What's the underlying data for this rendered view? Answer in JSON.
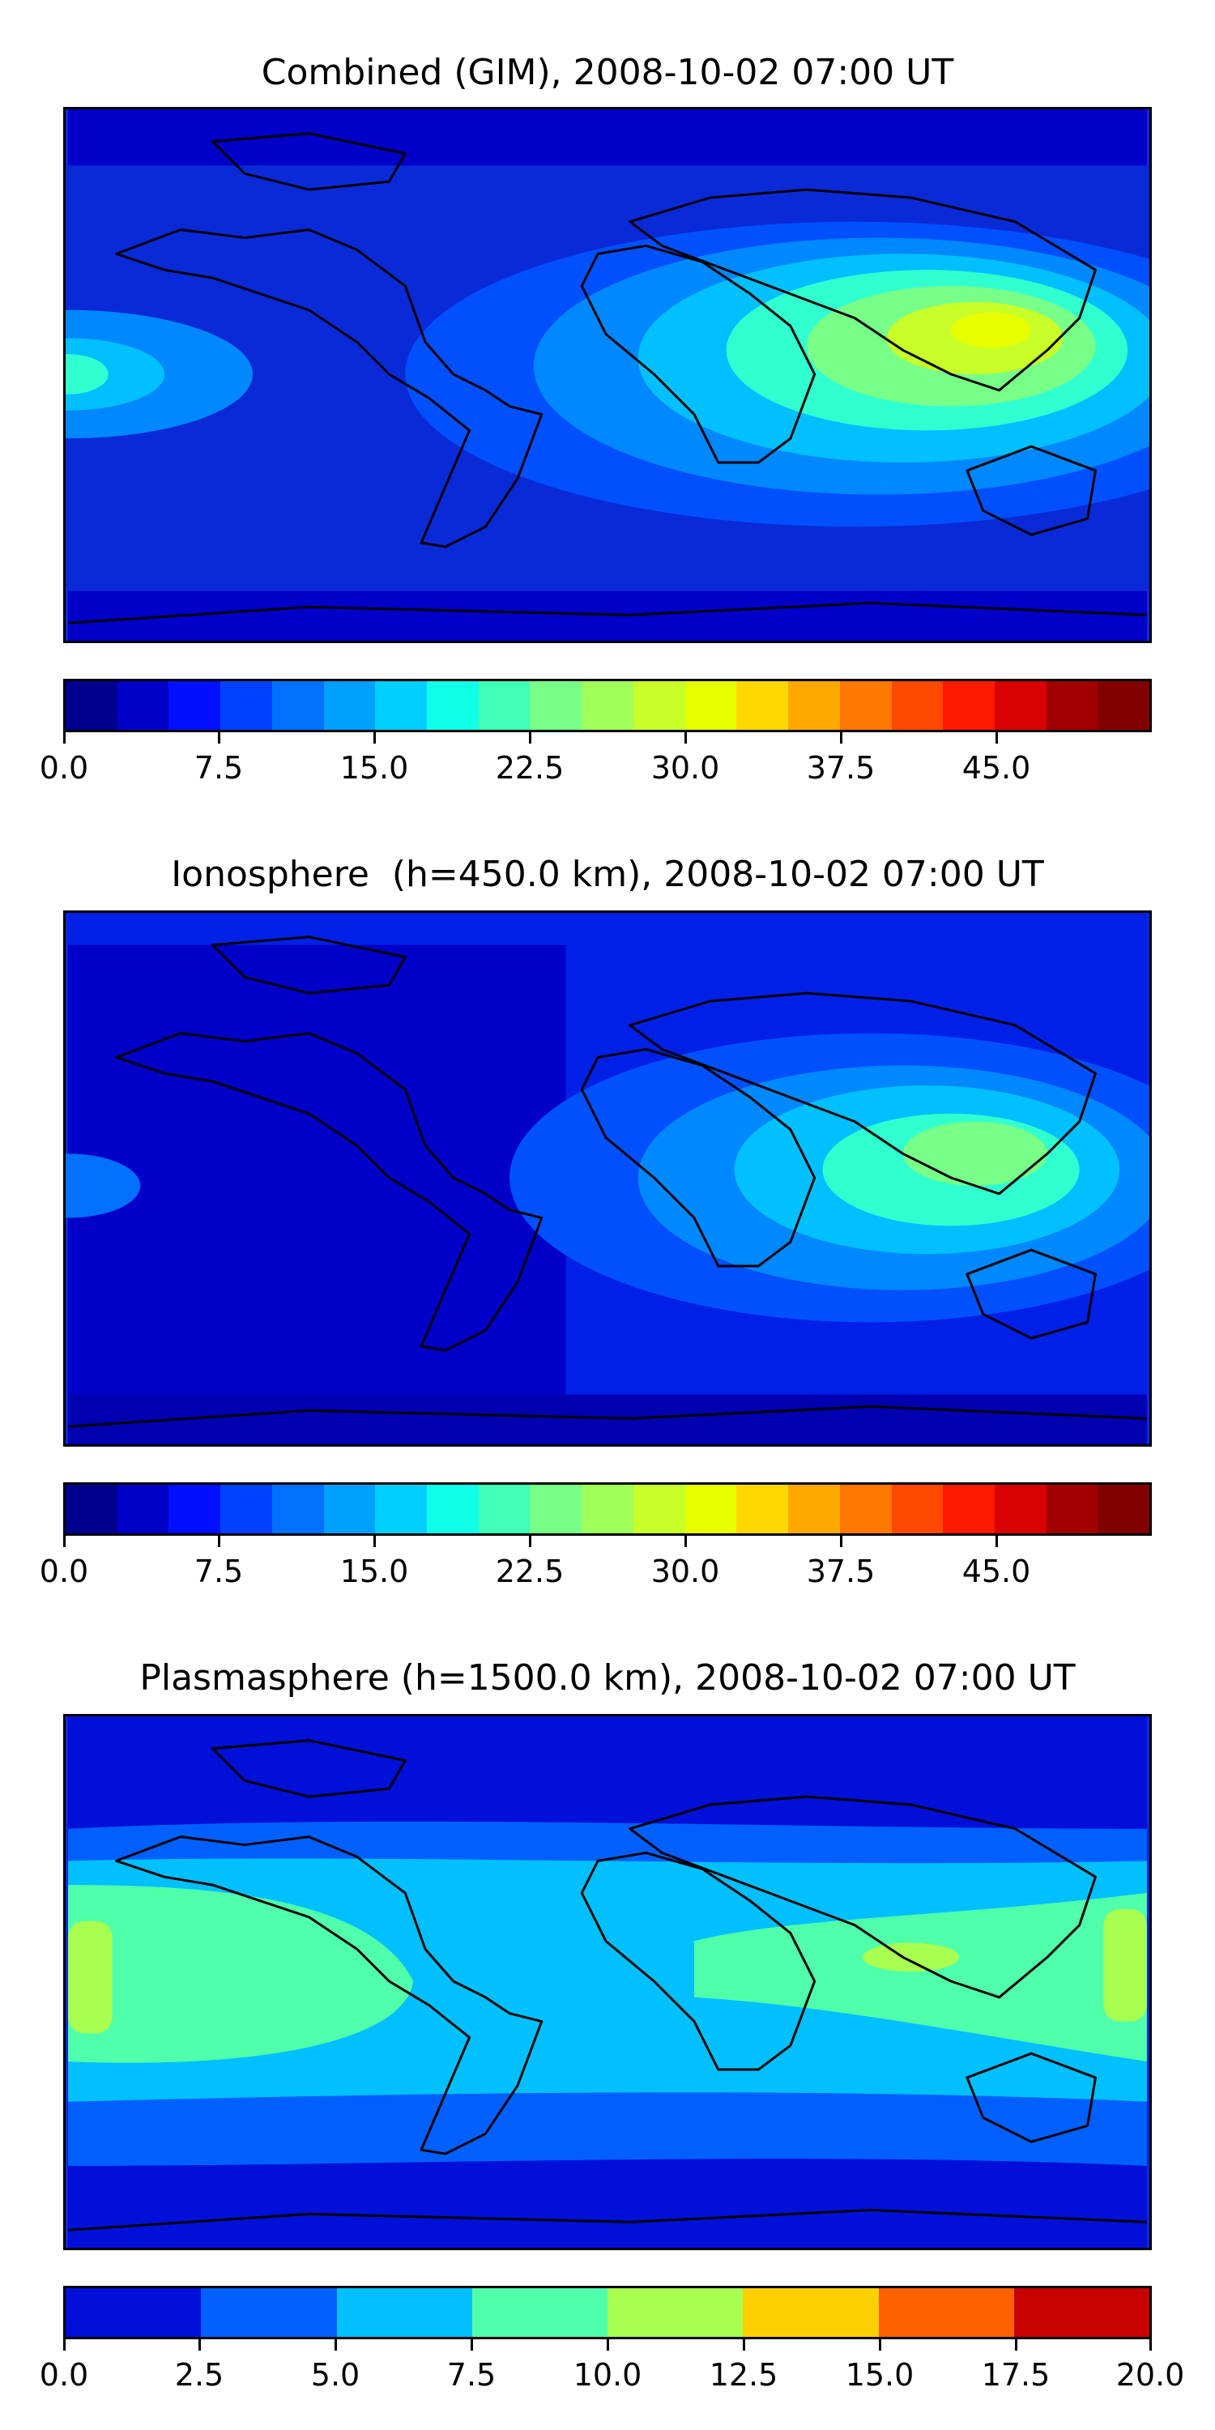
{
  "chart_data": [
    {
      "type": "heatmap",
      "title": "Combined (GIM), 2008-10-02 07:00 UT",
      "xlabel": "",
      "ylabel": "",
      "colorbar": {
        "min": 0.0,
        "max": 52.5,
        "step": 2.5,
        "tick_values": [
          0.0,
          7.5,
          15.0,
          22.5,
          30.0,
          37.5,
          45.0
        ],
        "tick_labels": [
          "0.0",
          "7.5",
          "15.0",
          "22.5",
          "30.0",
          "37.5",
          "45.0"
        ],
        "colors": [
          "#00008f",
          "#0000c8",
          "#0010ff",
          "#0040ff",
          "#0070ff",
          "#00a0ff",
          "#00d0ff",
          "#10ffe8",
          "#40ffb8",
          "#78ff88",
          "#a0ff58",
          "#c8ff28",
          "#e8ff00",
          "#ffd800",
          "#ffa800",
          "#ff7800",
          "#ff4800",
          "#ff1800",
          "#d80000",
          "#a00000",
          "#800000"
        ]
      },
      "peak_value_approx": 32,
      "peak_region": "East Asia / Southeast Asia",
      "background_level_approx": 6
    },
    {
      "type": "heatmap",
      "title": "Ionosphere  (h=450.0 km), 2008-10-02 07:00 UT",
      "xlabel": "",
      "ylabel": "",
      "colorbar": {
        "min": 0.0,
        "max": 52.5,
        "step": 2.5,
        "tick_values": [
          0.0,
          7.5,
          15.0,
          22.5,
          30.0,
          37.5,
          45.0
        ],
        "tick_labels": [
          "0.0",
          "7.5",
          "15.0",
          "22.5",
          "30.0",
          "37.5",
          "45.0"
        ],
        "colors": [
          "#00008f",
          "#0000c8",
          "#0010ff",
          "#0040ff",
          "#0070ff",
          "#00a0ff",
          "#00d0ff",
          "#10ffe8",
          "#40ffb8",
          "#78ff88",
          "#a0ff58",
          "#c8ff28",
          "#e8ff00",
          "#ffd800",
          "#ffa800",
          "#ff7800",
          "#ff4800",
          "#ff1800",
          "#d80000",
          "#a00000",
          "#800000"
        ]
      },
      "peak_value_approx": 26,
      "peak_region": "South Asia / Southeast Asia",
      "background_level_approx": 3
    },
    {
      "type": "heatmap",
      "title": "Plasmasphere (h=1500.0 km), 2008-10-02 07:00 UT",
      "xlabel": "",
      "ylabel": "",
      "colorbar": {
        "min": 0.0,
        "max": 20.0,
        "step": 2.5,
        "tick_values": [
          0.0,
          2.5,
          5.0,
          7.5,
          10.0,
          12.5,
          15.0,
          17.5,
          20.0
        ],
        "tick_labels": [
          "0.0",
          "2.5",
          "5.0",
          "7.5",
          "10.0",
          "12.5",
          "15.0",
          "17.5",
          "20.0"
        ],
        "colors": [
          "#0010d8",
          "#0060ff",
          "#00c0ff",
          "#50ffaa",
          "#a8ff50",
          "#ffd000",
          "#ff6000",
          "#c80000"
        ]
      },
      "peak_value_approx": 11,
      "peak_region": "equatorial band, strongest near 180° longitude",
      "background_level_approx": 1.5
    }
  ]
}
